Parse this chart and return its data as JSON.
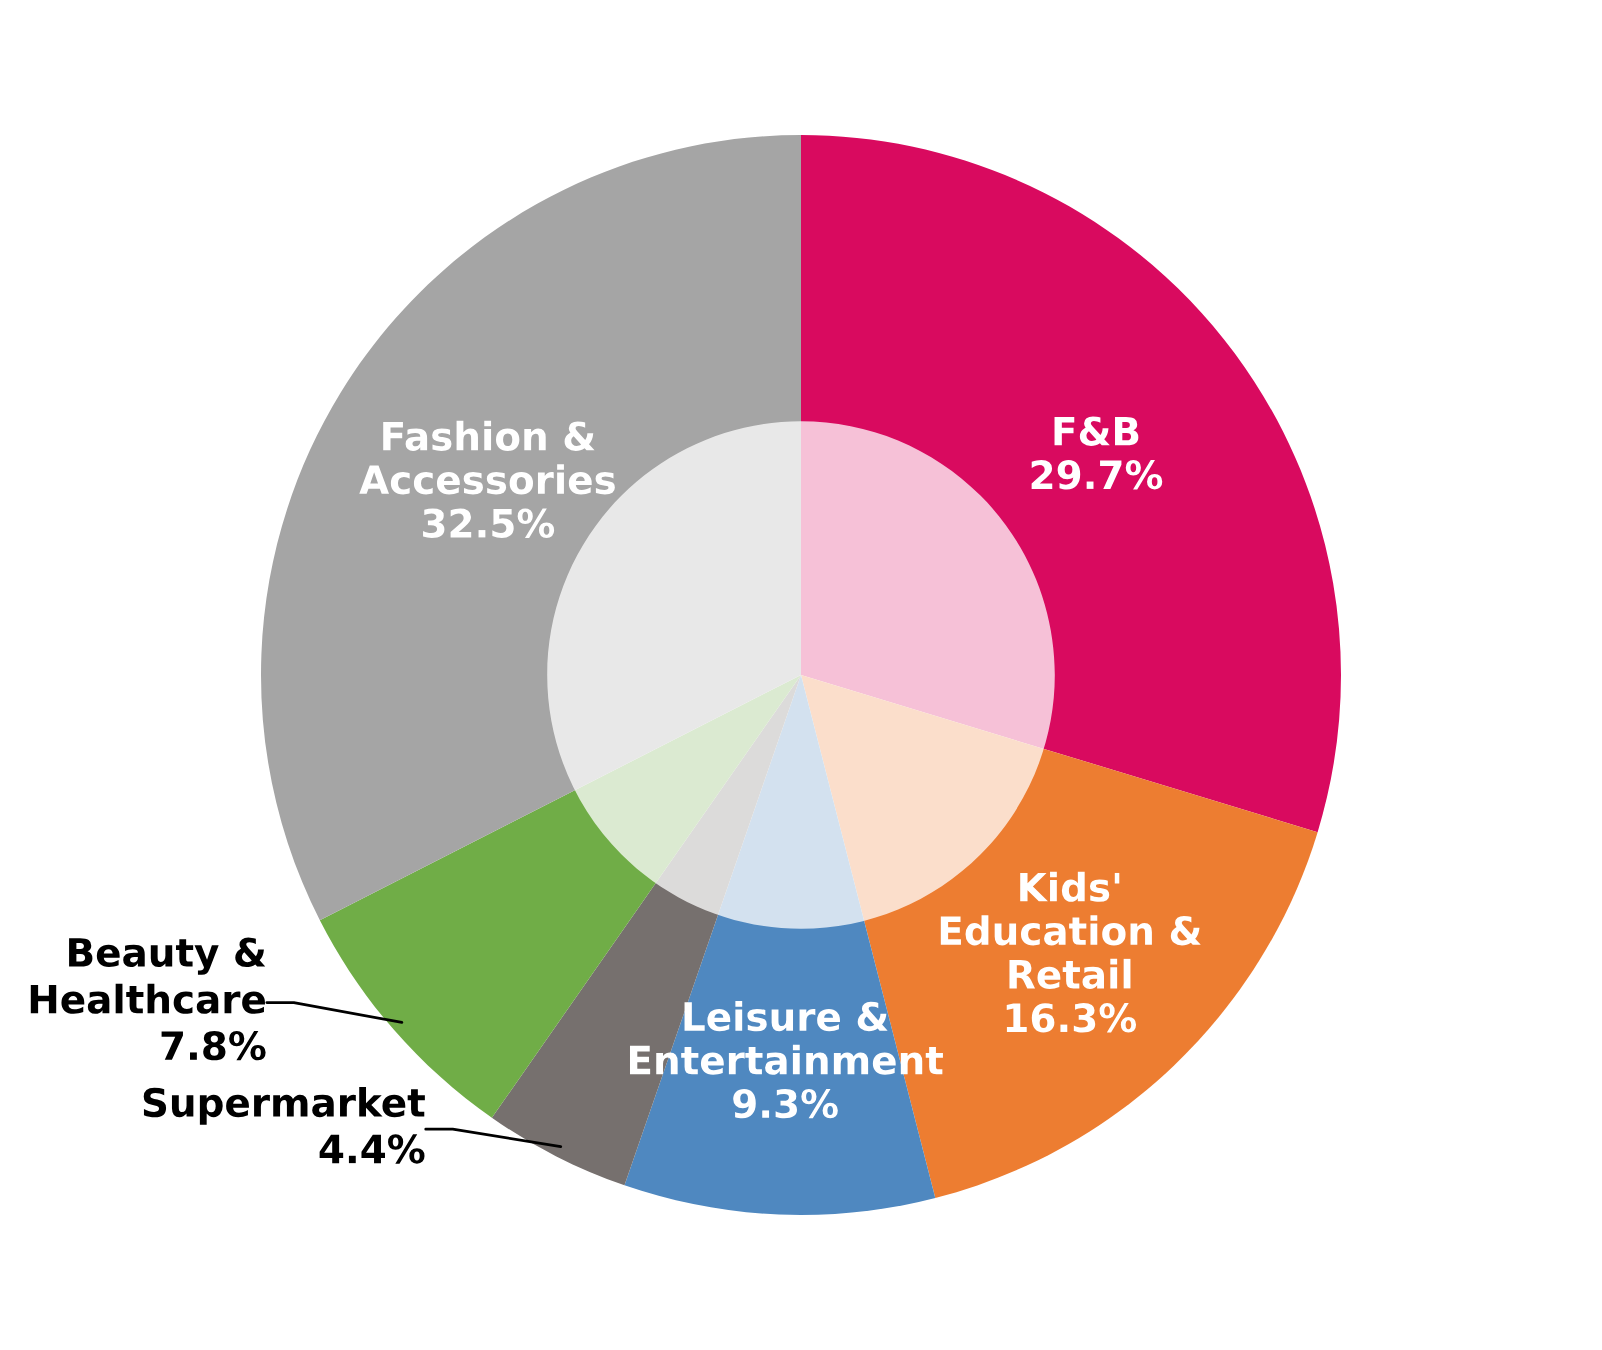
{
  "chart_data": {
    "type": "donut",
    "categories": [
      "F&B",
      "Kids'\nEducation &\nRetail",
      "Leisure &\nEntertainment",
      "Supermarket",
      "Beauty &\nHealthcare",
      "Fashion &\nAccessories"
    ],
    "values": [
      29.7,
      16.3,
      9.3,
      4.4,
      7.8,
      32.5
    ],
    "value_labels": [
      "29.7%",
      "16.3%",
      "9.3%",
      "4.4%",
      "7.8%",
      "32.5%"
    ],
    "colors": [
      "#d90a5f",
      "#ed7d31",
      "#4f88c0",
      "#76706e",
      "#70ad47",
      "#a5a5a5"
    ],
    "legend": false
  }
}
